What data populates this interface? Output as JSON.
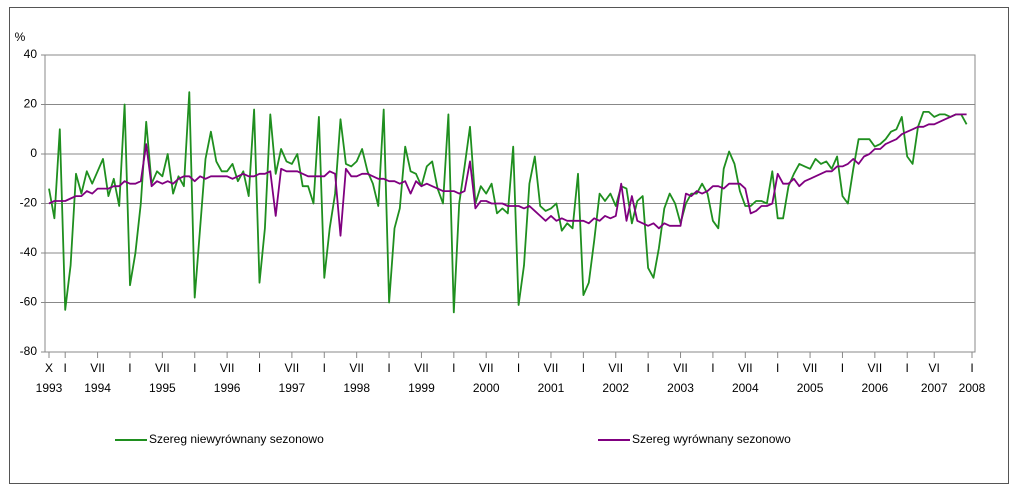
{
  "chart_data": {
    "type": "line",
    "y_label": "%",
    "categories": [
      "X",
      null,
      null,
      "I",
      null,
      null,
      null,
      null,
      null,
      "VII",
      null,
      null,
      null,
      null,
      null,
      "I",
      null,
      null,
      null,
      null,
      null,
      "VII",
      null,
      null,
      null,
      null,
      null,
      "I",
      null,
      null,
      null,
      null,
      null,
      "VII",
      null,
      null,
      null,
      null,
      null,
      "I",
      null,
      null,
      null,
      null,
      null,
      "VII",
      null,
      null,
      null,
      null,
      null,
      "I",
      null,
      null,
      null,
      null,
      null,
      "VII",
      null,
      null,
      null,
      null,
      null,
      "I",
      null,
      null,
      null,
      null,
      null,
      "VII",
      null,
      null,
      null,
      null,
      null,
      "I",
      null,
      null,
      null,
      null,
      null,
      "VII",
      null,
      null,
      null,
      null,
      null,
      "I",
      null,
      null,
      null,
      null,
      null,
      "VII",
      null,
      null,
      null,
      null,
      null,
      "I",
      null,
      null,
      null,
      null,
      null,
      "VII",
      null,
      null,
      null,
      null,
      null,
      "I",
      null,
      null,
      null,
      null,
      null,
      "VII",
      null,
      null,
      null,
      null,
      null,
      "I",
      null,
      null,
      null,
      null,
      null,
      "VII",
      null,
      null,
      null,
      null,
      null,
      "I",
      null,
      null,
      null,
      null,
      null,
      "VII",
      null,
      null,
      null,
      null,
      null,
      "I",
      null,
      null,
      null,
      null,
      null,
      "VII",
      null,
      null,
      null,
      null,
      null,
      "I",
      null,
      null,
      null,
      null,
      "VI",
      null,
      null,
      null,
      null,
      null,
      null,
      "I"
    ],
    "category_years": [
      "1993",
      null,
      null,
      null,
      null,
      null,
      null,
      null,
      null,
      "1994",
      null,
      null,
      null,
      null,
      null,
      null,
      null,
      null,
      null,
      null,
      null,
      "1995",
      null,
      null,
      null,
      null,
      null,
      null,
      null,
      null,
      null,
      null,
      null,
      "1996",
      null,
      null,
      null,
      null,
      null,
      null,
      null,
      null,
      null,
      null,
      null,
      "1997",
      null,
      null,
      null,
      null,
      null,
      null,
      null,
      null,
      null,
      null,
      null,
      "1998",
      null,
      null,
      null,
      null,
      null,
      null,
      null,
      null,
      null,
      null,
      null,
      "1999",
      null,
      null,
      null,
      null,
      null,
      null,
      null,
      null,
      null,
      null,
      null,
      "2000",
      null,
      null,
      null,
      null,
      null,
      null,
      null,
      null,
      null,
      null,
      null,
      "2001",
      null,
      null,
      null,
      null,
      null,
      null,
      null,
      null,
      null,
      null,
      null,
      "2002",
      null,
      null,
      null,
      null,
      null,
      null,
      null,
      null,
      null,
      null,
      null,
      "2003",
      null,
      null,
      null,
      null,
      null,
      null,
      null,
      null,
      null,
      null,
      null,
      "2004",
      null,
      null,
      null,
      null,
      null,
      null,
      null,
      null,
      null,
      null,
      null,
      "2005",
      null,
      null,
      null,
      null,
      null,
      null,
      null,
      null,
      null,
      null,
      null,
      "2006",
      null,
      null,
      null,
      null,
      null,
      null,
      null,
      null,
      null,
      null,
      "2007",
      null,
      null,
      null,
      null,
      null,
      null,
      "2008"
    ],
    "ylim": [
      -80,
      40
    ],
    "yticks": [
      -80,
      -60,
      -40,
      -20,
      0,
      20,
      40
    ],
    "grid": true,
    "series": [
      {
        "name": "Szereg niewyrównany sezonowo",
        "color": "#1f8f1f",
        "values": [
          -14,
          -26,
          10,
          -63,
          -45,
          -8,
          -16,
          -7,
          -12,
          -7,
          -2,
          -17,
          -10,
          -21,
          20,
          -53,
          -40,
          -20,
          13,
          -12,
          -7,
          -9,
          0,
          -16,
          -9,
          -13,
          25,
          -58,
          -30,
          -2,
          9,
          -3,
          -7,
          -7,
          -4,
          -11,
          -7,
          -17,
          18,
          -52,
          -30,
          16,
          -8,
          2,
          -3,
          -4,
          0,
          -13,
          -13,
          -20,
          15,
          -50,
          -30,
          -16,
          14,
          -4,
          -5,
          -3,
          2,
          -7,
          -12,
          -21,
          18,
          -60,
          -30,
          -22,
          3,
          -7,
          -8,
          -13,
          -5,
          -3,
          -14,
          -20,
          16,
          -64,
          -20,
          -5,
          11,
          -20,
          -13,
          -16,
          -12,
          -24,
          -22,
          -24,
          3,
          -61,
          -45,
          -12,
          -1,
          -21,
          -23,
          -22,
          -20,
          -31,
          -28,
          -30,
          -8,
          -57,
          -52,
          -35,
          -16,
          -19,
          -16,
          -21,
          -13,
          -14,
          -28,
          -19,
          -17,
          -46,
          -50,
          -38,
          -22,
          -16,
          -20,
          -28,
          -20,
          -16,
          -16,
          -12,
          -16,
          -27,
          -30,
          -6,
          1,
          -4,
          -15,
          -21,
          -21,
          -19,
          -19,
          -20,
          -7,
          -26,
          -26,
          -13,
          -8,
          -4,
          -5,
          -6,
          -2,
          -4,
          -3,
          -6,
          -1,
          -17,
          -20,
          -6,
          6,
          6,
          6,
          3,
          4,
          6,
          9,
          10,
          15,
          -1,
          -4,
          11,
          17,
          17,
          15,
          16,
          16,
          15,
          16,
          16,
          12,
          null
        ]
      },
      {
        "name": "Szereg wyrównany sezonowo",
        "color": "#800080",
        "values": [
          -20,
          -19,
          -19,
          -19,
          -18,
          -17,
          -17,
          -15,
          -16,
          -14,
          -14,
          -14,
          -13,
          -13,
          -11,
          -12,
          -12,
          -11,
          4,
          -13,
          -11,
          -12,
          -11,
          -12,
          -10,
          -9,
          -9,
          -11,
          -9,
          -10,
          -9,
          -9,
          -9,
          -9,
          -10,
          -9,
          -8,
          -9,
          -9,
          -8,
          -8,
          -7,
          -25,
          -6,
          -7,
          -7,
          -7,
          -8,
          -9,
          -9,
          -9,
          -9,
          -7,
          -8,
          -33,
          -6,
          -9,
          -9,
          -8,
          -8,
          -9,
          -10,
          -10,
          -11,
          -11,
          -12,
          -11,
          -16,
          -11,
          -13,
          -12,
          -13,
          -14,
          -15,
          -15,
          -15,
          -16,
          -15,
          -3,
          -22,
          -19,
          -19,
          -20,
          -20,
          -20,
          -21,
          -21,
          -21,
          -22,
          -21,
          -23,
          -25,
          -27,
          -25,
          -27,
          -26,
          -27,
          -27,
          -27,
          -27,
          -28,
          -26,
          -27,
          -25,
          -26,
          -25,
          -12,
          -27,
          -17,
          -27,
          -28,
          -29,
          -28,
          -30,
          -28,
          -29,
          -29,
          -29,
          -16,
          -17,
          -15,
          -16,
          -15,
          -13,
          -13,
          -14,
          -12,
          -12,
          -12,
          -14,
          -24,
          -23,
          -21,
          -21,
          -20,
          -8,
          -12,
          -12,
          -10,
          -13,
          -11,
          -10,
          -9,
          -8,
          -7,
          -7,
          -5,
          -5,
          -4,
          -2,
          -4,
          -1,
          0,
          2,
          2,
          4,
          5,
          6,
          8,
          9,
          10,
          11,
          11,
          12,
          12,
          13,
          14,
          15,
          16,
          16,
          16,
          null
        ]
      }
    ]
  }
}
